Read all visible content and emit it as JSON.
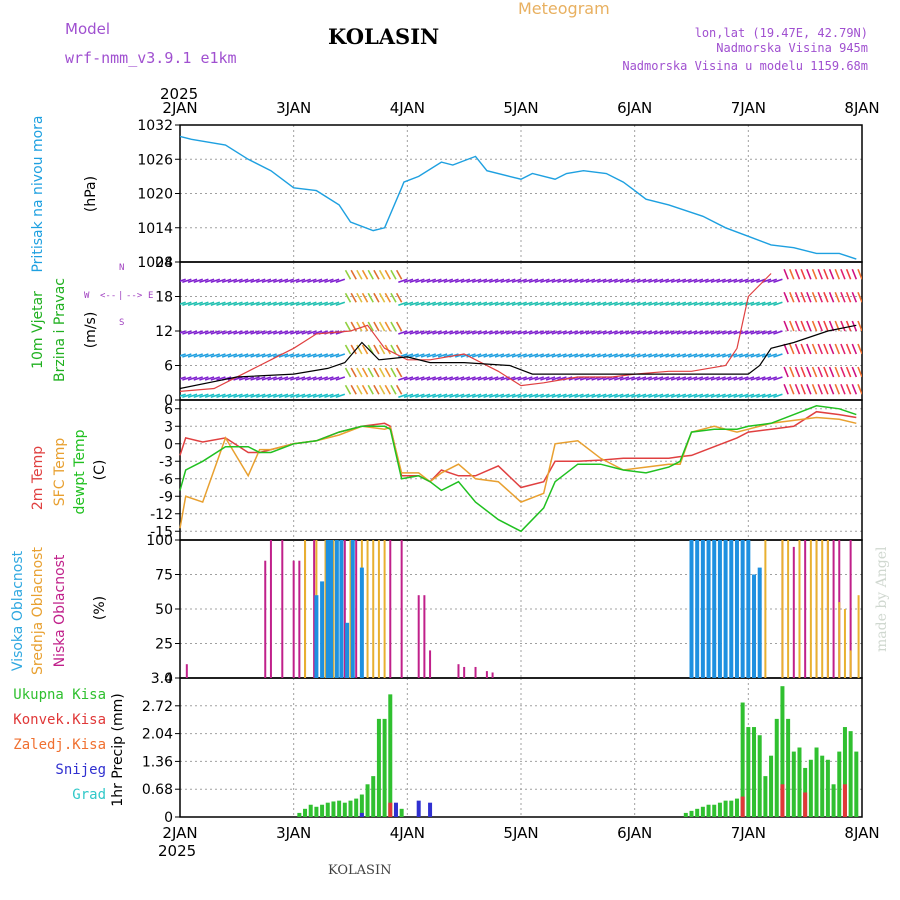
{
  "header": {
    "model_label": "Model",
    "model_name": "wrf-nmm_v3.9.1 e1km",
    "station": "KOLASIN",
    "title": "Meteogram",
    "coords": "lon,lat (19.47E, 42.79N)",
    "elev": "Nadmorska Visina 945m",
    "elev_model": "Nadmorska Visina u modelu 1159.68m",
    "year": "2025",
    "footer_station": "KOLASIN",
    "credit": "made by Angel"
  },
  "colors": {
    "pressure": "#1ea0e0",
    "t2m": "#e04040",
    "sfc": "#e8a030",
    "dew": "#20c020",
    "cloud_high": "#1e90e0",
    "cloud_mid": "#e8b030",
    "cloud_low": "#c0208a",
    "rain_total": "#30c030",
    "rain_conv": "#e03838",
    "freezing": "#f07030",
    "snow": "#3030d0",
    "graupel": "#30c8c8",
    "wind_label": "#20b020",
    "wind_dir": "#a040c0"
  },
  "x_axis": {
    "days": [
      "2JAN",
      "3JAN",
      "4JAN",
      "5JAN",
      "6JAN",
      "7JAN",
      "8JAN"
    ],
    "year": "2025"
  },
  "labels": {
    "pressure": [
      "Pritisak na nivou mora",
      "(hPa)"
    ],
    "wind": [
      "10m Vjetar",
      "Brzina i Pravac",
      "(m/s)"
    ],
    "wind_dir": [
      "W",
      "<--",
      "|",
      "-->",
      "E",
      "N",
      "S"
    ],
    "temp": [
      "2m Temp",
      "SFC Temp",
      "dewpt Temp",
      "(C)"
    ],
    "cloud": [
      "Visoka Oblacnost",
      "Srednja Oblacnost",
      "Niska Oblacnost",
      "(%)"
    ],
    "precip": [
      "Ukupna Kisa",
      "Konvek.Kisa",
      "Zaledj.Kisa",
      "Snijeg",
      "Grad",
      "1hr Precip (mm)"
    ]
  },
  "chart_data": [
    {
      "type": "line",
      "name": "pressure",
      "ylim": [
        1008,
        1032
      ],
      "yticks": [
        "1008",
        "1014",
        "1020",
        "1026",
        "1032"
      ],
      "x_days": [
        0,
        0.1,
        0.4,
        0.6,
        0.8,
        1.0,
        1.2,
        1.4,
        1.5,
        1.7,
        1.8,
        1.95,
        1.97,
        2.1,
        2.3,
        2.4,
        2.6,
        2.7,
        2.9,
        3.0,
        3.1,
        3.3,
        3.4,
        3.55,
        3.75,
        3.9,
        4.0,
        4.1,
        4.3,
        4.6,
        4.8,
        5.0,
        5.2,
        5.4,
        5.6,
        5.8,
        5.95
      ],
      "values": [
        1030,
        1029.5,
        1028.5,
        1026,
        1024,
        1021,
        1020.5,
        1018,
        1015,
        1013.5,
        1014,
        1021,
        1022,
        1023,
        1025.5,
        1025,
        1026.5,
        1024,
        1023,
        1022.5,
        1023.5,
        1022.5,
        1023.5,
        1024,
        1023.5,
        1022,
        1020.5,
        1019,
        1018,
        1016,
        1014,
        1012.5,
        1011,
        1010.5,
        1009.5,
        1009.5,
        1008.5
      ]
    },
    {
      "type": "line",
      "name": "wind",
      "ylim": [
        0,
        24
      ],
      "yticks": [
        "0",
        "6",
        "12",
        "18",
        "24"
      ],
      "x_days": [
        0,
        0.5,
        1.0,
        1.3,
        1.45,
        1.6,
        1.75,
        2.0,
        2.2,
        2.5,
        2.9,
        3.1,
        3.5,
        4.0,
        4.5,
        5.0,
        5.1,
        5.2,
        5.4,
        5.7,
        5.95
      ],
      "values": [
        2,
        4,
        4.5,
        5.5,
        6.5,
        10,
        7,
        7.5,
        6.5,
        6.5,
        6,
        4.5,
        4.5,
        4.5,
        4.5,
        4.5,
        6,
        9,
        10,
        12,
        13
      ],
      "gust_x_days": [
        0,
        0.3,
        0.6,
        0.8,
        1.0,
        1.2,
        1.5,
        1.65,
        1.8,
        2.0,
        2.2,
        2.5,
        2.8,
        3.0,
        3.2,
        3.5,
        3.8,
        4.0,
        4.3,
        4.5,
        4.8,
        4.9,
        5.0,
        5.1,
        5.2
      ],
      "gust_values": [
        1.5,
        2,
        5,
        7,
        9,
        11.5,
        12,
        13,
        9,
        7,
        7,
        8,
        5,
        2.5,
        3,
        4,
        4,
        4.5,
        5,
        5,
        6,
        9,
        18,
        20,
        22
      ]
    },
    {
      "type": "line",
      "name": "temperature",
      "ylim": [
        -16.5,
        7.5
      ],
      "yticks": [
        "-15",
        "-12",
        "-9",
        "-6",
        "-3",
        "0",
        "3",
        "6"
      ],
      "x_days": [
        0,
        0.05,
        0.2,
        0.4,
        0.6,
        0.7,
        0.8,
        1.0,
        1.2,
        1.4,
        1.6,
        1.8,
        1.85,
        1.95,
        2.1,
        2.2,
        2.3,
        2.45,
        2.6,
        2.8,
        3.0,
        3.2,
        3.3,
        3.5,
        3.7,
        3.9,
        4.1,
        4.3,
        4.4,
        4.5,
        4.7,
        4.9,
        5.0,
        5.2,
        5.4,
        5.6,
        5.8,
        5.95
      ],
      "series": [
        {
          "name": "2m Temp",
          "values": [
            -2,
            1,
            0.3,
            1,
            -1.5,
            -1.5,
            -1,
            0,
            0.5,
            2,
            3,
            3.5,
            3,
            -5.5,
            -5.5,
            -6.5,
            -4.5,
            -5.5,
            -5.5,
            -3.8,
            -7.5,
            -6.5,
            -3,
            -3,
            -2.8,
            -2.5,
            -2.5,
            -2.5,
            -2.2,
            -2,
            -0.5,
            1,
            2,
            2.5,
            3,
            5.5,
            5,
            4.5
          ]
        },
        {
          "name": "SFC Temp",
          "values": [
            -14.5,
            -9,
            -10,
            1,
            -5.5,
            -1,
            -1,
            0,
            0.5,
            1.5,
            3,
            2.5,
            2.8,
            -5,
            -5,
            -6.5,
            -5,
            -3.5,
            -6,
            -6.5,
            -10,
            -8.5,
            0,
            0.5,
            -2.5,
            -4.5,
            -4,
            -3.5,
            -3.5,
            2,
            3,
            2,
            2.5,
            3.5,
            4,
            4.5,
            4.2,
            3.5
          ]
        },
        {
          "name": "dewpt Temp",
          "values": [
            -8,
            -4.5,
            -3,
            -0.5,
            -0.5,
            -1.5,
            -1.5,
            0,
            0.5,
            2,
            3,
            3,
            2.5,
            -6,
            -5.5,
            -6.5,
            -8,
            -6.5,
            -10,
            -13,
            -15,
            -11,
            -6.5,
            -3.5,
            -3.5,
            -4.5,
            -5,
            -4,
            -3,
            2,
            2.5,
            2.5,
            3,
            3.5,
            5,
            6.5,
            6,
            5
          ]
        }
      ]
    },
    {
      "type": "bar",
      "name": "cloud",
      "ylim": [
        0,
        100
      ],
      "yticks": [
        "0",
        "25",
        "50",
        "75",
        "100"
      ],
      "series": [
        {
          "name": "Niska Oblacnost",
          "x_days": [
            0.06,
            0.75,
            0.8,
            0.9,
            1.0,
            1.05,
            1.1,
            1.18,
            1.45,
            1.55,
            1.85,
            1.95,
            2.1,
            2.15,
            2.2,
            2.45,
            2.5,
            2.6,
            2.7,
            2.75,
            4.5,
            4.55,
            5.3,
            5.4,
            5.5,
            5.6,
            5.7,
            5.75,
            5.8,
            5.9
          ],
          "values": [
            10,
            85,
            100,
            100,
            85,
            85,
            100,
            100,
            100,
            100,
            100,
            100,
            60,
            60,
            20,
            10,
            8,
            8,
            5,
            4,
            80,
            85,
            100,
            95,
            100,
            100,
            100,
            100,
            100,
            100
          ]
        },
        {
          "name": "Srednja Oblacnost",
          "x_days": [
            1.1,
            1.2,
            1.28,
            1.35,
            1.5,
            1.6,
            1.65,
            1.7,
            1.75,
            1.8,
            5.05,
            5.15,
            5.3,
            5.35,
            5.45,
            5.55,
            5.6,
            5.65,
            5.7,
            5.8,
            5.85,
            5.9,
            5.97
          ],
          "values": [
            100,
            100,
            100,
            100,
            100,
            100,
            100,
            100,
            100,
            100,
            30,
            100,
            100,
            100,
            100,
            100,
            100,
            100,
            100,
            55,
            50,
            20,
            60
          ]
        },
        {
          "name": "Visoka Oblacnost",
          "x_days": [
            1.2,
            1.25,
            1.3,
            1.33,
            1.38,
            1.42,
            1.47,
            1.52,
            1.6,
            4.5,
            4.55,
            4.6,
            4.65,
            4.7,
            4.75,
            4.8,
            4.85,
            4.9,
            4.95,
            5.0,
            5.05,
            5.1
          ],
          "values": [
            60,
            70,
            100,
            100,
            100,
            100,
            40,
            100,
            80,
            100,
            100,
            100,
            100,
            100,
            100,
            100,
            100,
            100,
            100,
            100,
            75,
            80
          ]
        }
      ]
    },
    {
      "type": "bar",
      "name": "precip",
      "ylim": [
        0,
        3.4
      ],
      "yticks": [
        "0",
        "0.68",
        "1.36",
        "2.04",
        "2.72",
        "3.4"
      ],
      "series": [
        {
          "name": "Ukupna Kisa",
          "x_days": [
            1.05,
            1.1,
            1.15,
            1.2,
            1.25,
            1.3,
            1.35,
            1.4,
            1.45,
            1.5,
            1.55,
            1.6,
            1.65,
            1.7,
            1.75,
            1.8,
            1.85,
            1.9,
            1.95,
            4.45,
            4.5,
            4.55,
            4.6,
            4.65,
            4.7,
            4.75,
            4.8,
            4.85,
            4.9,
            4.95,
            5.0,
            5.05,
            5.1,
            5.15,
            5.2,
            5.25,
            5.3,
            5.35,
            5.4,
            5.45,
            5.5,
            5.55,
            5.6,
            5.65,
            5.7,
            5.75,
            5.8,
            5.85,
            5.9,
            5.95
          ],
          "values": [
            0.1,
            0.2,
            0.3,
            0.25,
            0.3,
            0.35,
            0.38,
            0.4,
            0.35,
            0.4,
            0.45,
            0.55,
            0.8,
            1.0,
            2.4,
            2.4,
            3.0,
            0.3,
            0.2,
            0.1,
            0.15,
            0.2,
            0.25,
            0.3,
            0.3,
            0.35,
            0.4,
            0.4,
            0.45,
            2.8,
            2.2,
            2.2,
            2.0,
            1.0,
            1.5,
            2.4,
            3.2,
            2.4,
            1.6,
            1.7,
            1.2,
            1.4,
            1.7,
            1.5,
            1.4,
            0.8,
            1.6,
            2.2,
            2.1,
            1.6
          ]
        },
        {
          "name": "Konvek.Kisa",
          "x_days": [
            1.85,
            4.95,
            5.3,
            5.5,
            5.85
          ],
          "values": [
            0.35,
            0.5,
            0.8,
            0.6,
            0.8
          ]
        },
        {
          "name": "Snijeg",
          "x_days": [
            1.6,
            1.9,
            2.1,
            2.2
          ],
          "values": [
            0.1,
            0.35,
            0.4,
            0.35
          ]
        }
      ]
    }
  ]
}
